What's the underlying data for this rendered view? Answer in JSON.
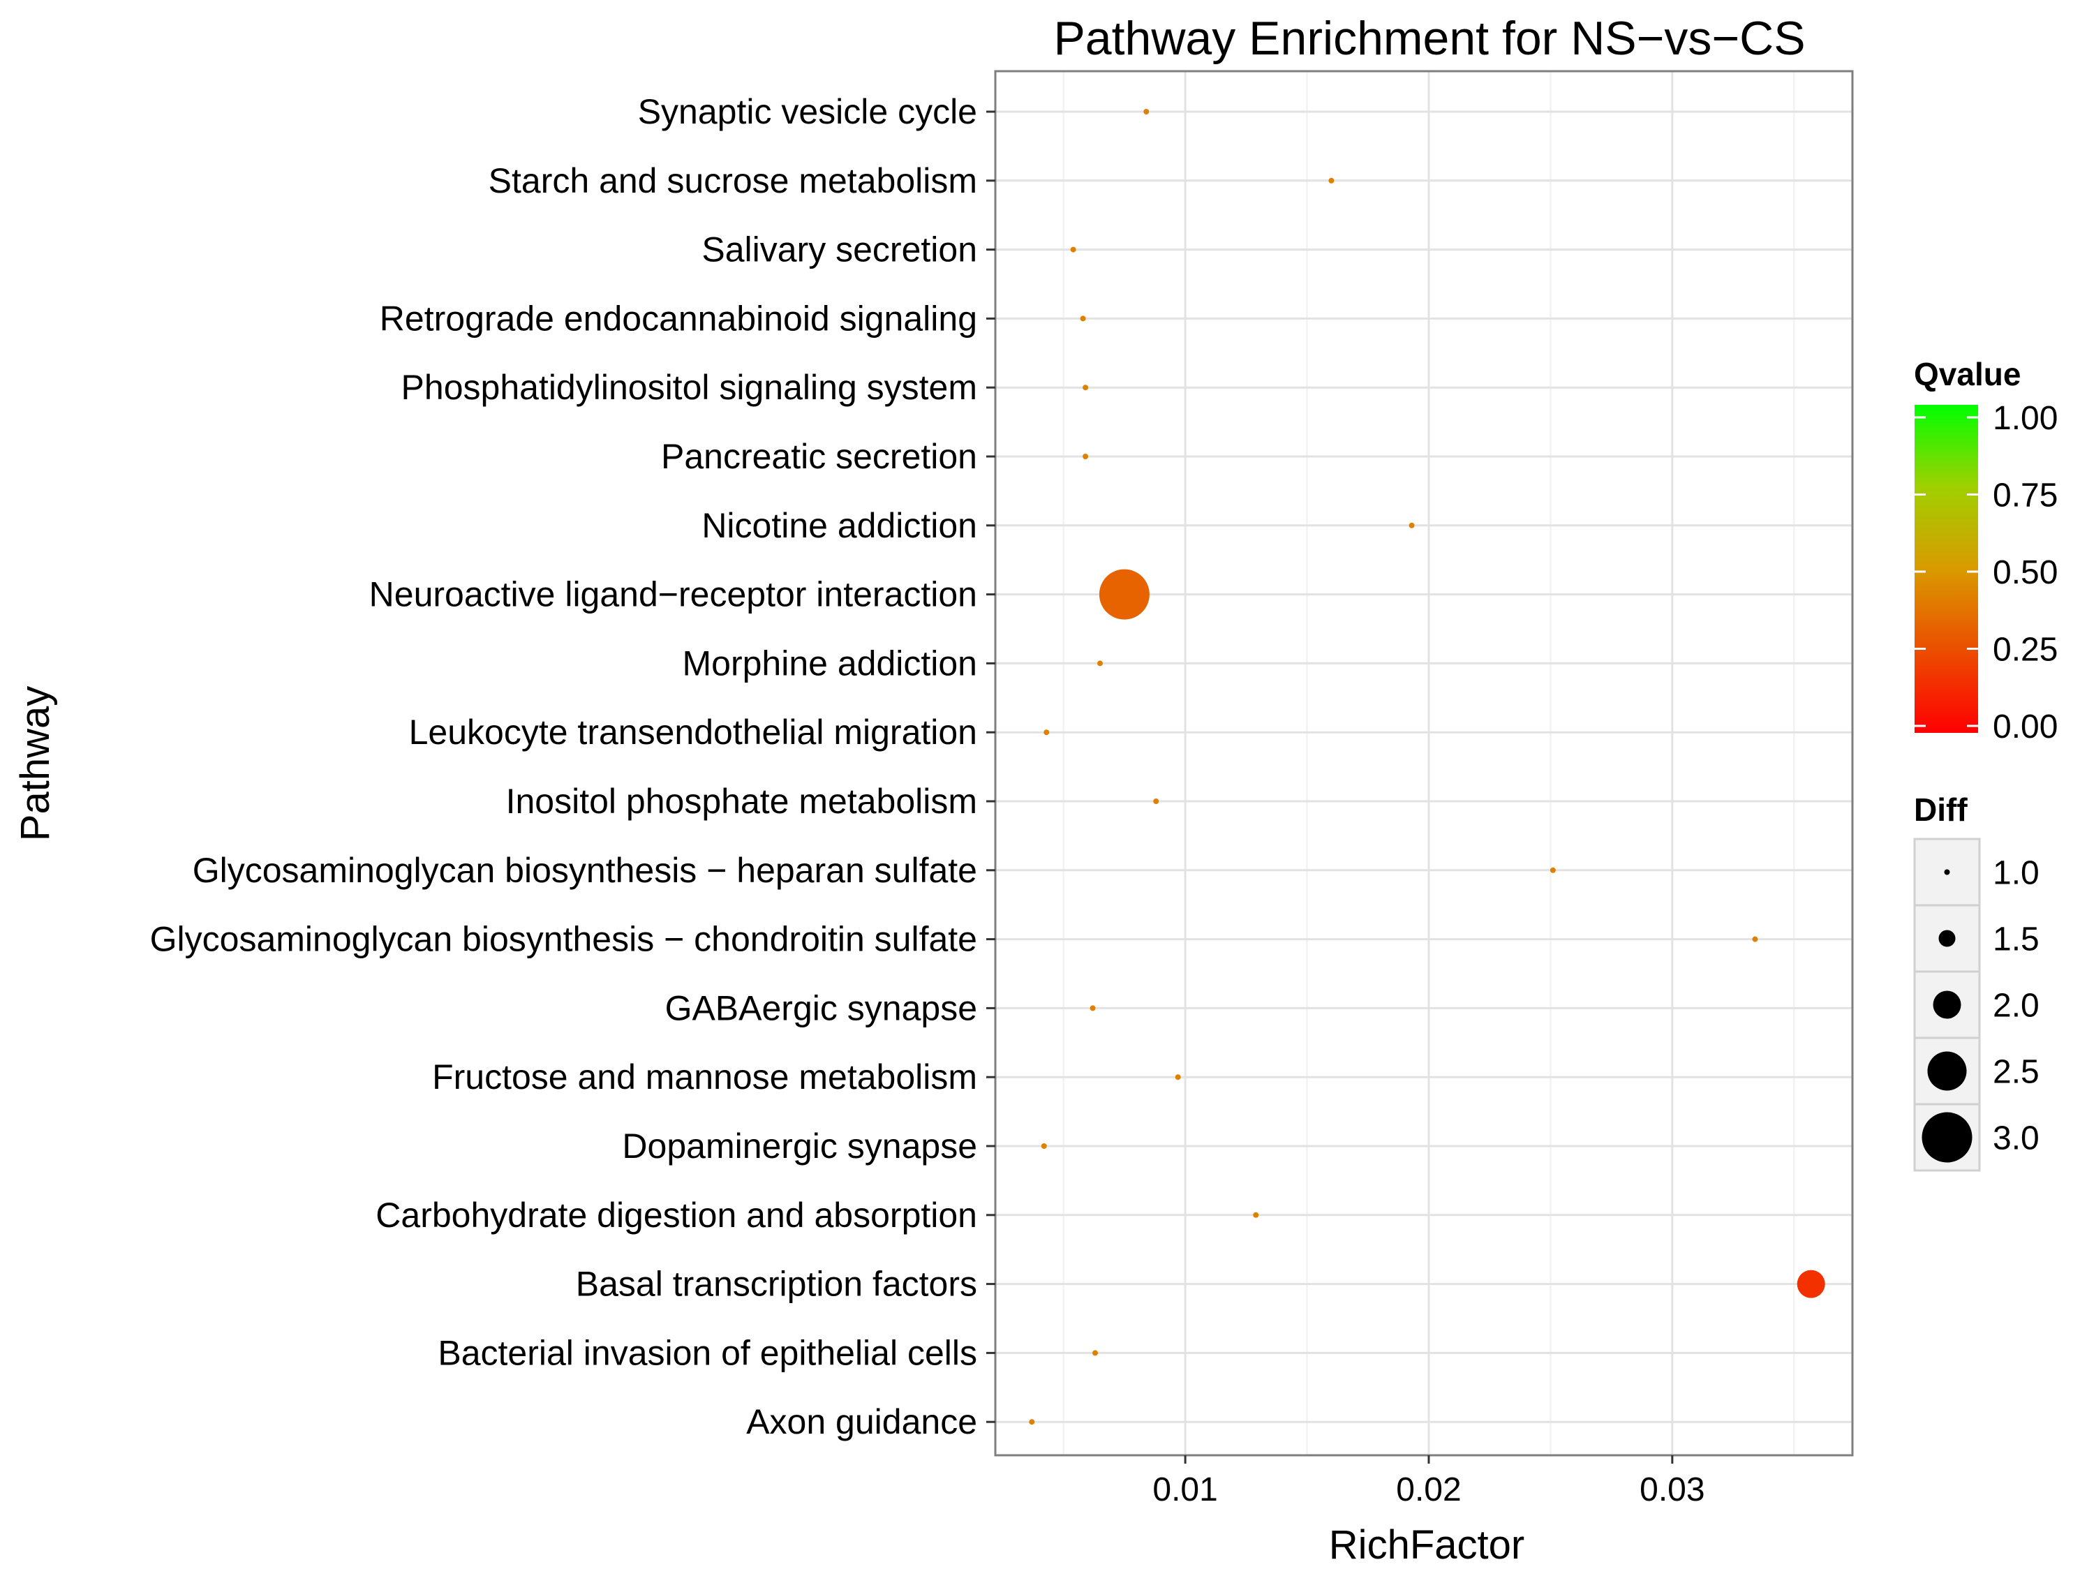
{
  "chart_data": {
    "type": "scatter",
    "title": "Pathway Enrichment for NS−vs−CS",
    "xlabel": "RichFactor",
    "ylabel": "Pathway",
    "xlim": [
      0.0022,
      0.0374
    ],
    "x_ticks": [
      {
        "value": 0.01,
        "label": "0.01"
      },
      {
        "value": 0.02,
        "label": "0.02"
      },
      {
        "value": 0.03,
        "label": "0.03"
      }
    ],
    "grid": true,
    "categories": [
      "Synaptic vesicle cycle",
      "Starch and sucrose metabolism",
      "Salivary secretion",
      "Retrograde endocannabinoid signaling",
      "Phosphatidylinositol signaling system",
      "Pancreatic secretion",
      "Nicotine addiction",
      "Neuroactive ligand−receptor interaction",
      "Morphine addiction",
      "Leukocyte transendothelial migration",
      "Inositol phosphate metabolism",
      "Glycosaminoglycan biosynthesis − heparan sulfate",
      "Glycosaminoglycan biosynthesis − chondroitin sulfate",
      "GABAergic synapse",
      "Fructose and mannose metabolism",
      "Dopaminergic synapse",
      "Carbohydrate digestion and absorption",
      "Basal transcription factors",
      "Bacterial invasion of epithelial cells",
      "Axon guidance"
    ],
    "points": [
      {
        "pathway": "Synaptic vesicle cycle",
        "richFactor": 0.0084,
        "qvalue": 0.42,
        "diff": 1
      },
      {
        "pathway": "Starch and sucrose metabolism",
        "richFactor": 0.016,
        "qvalue": 0.42,
        "diff": 1
      },
      {
        "pathway": "Salivary secretion",
        "richFactor": 0.0054,
        "qvalue": 0.42,
        "diff": 1
      },
      {
        "pathway": "Retrograde endocannabinoid signaling",
        "richFactor": 0.0058,
        "qvalue": 0.42,
        "diff": 1
      },
      {
        "pathway": "Phosphatidylinositol signaling system",
        "richFactor": 0.0059,
        "qvalue": 0.42,
        "diff": 1
      },
      {
        "pathway": "Pancreatic secretion",
        "richFactor": 0.0059,
        "qvalue": 0.42,
        "diff": 1
      },
      {
        "pathway": "Nicotine addiction",
        "richFactor": 0.0193,
        "qvalue": 0.42,
        "diff": 1
      },
      {
        "pathway": "Neuroactive ligand−receptor interaction",
        "richFactor": 0.0075,
        "qvalue": 0.32,
        "diff": 3
      },
      {
        "pathway": "Morphine addiction",
        "richFactor": 0.0065,
        "qvalue": 0.42,
        "diff": 1
      },
      {
        "pathway": "Leukocyte transendothelial migration",
        "richFactor": 0.0043,
        "qvalue": 0.42,
        "diff": 1
      },
      {
        "pathway": "Inositol phosphate metabolism",
        "richFactor": 0.0088,
        "qvalue": 0.42,
        "diff": 1
      },
      {
        "pathway": "Glycosaminoglycan biosynthesis − heparan sulfate",
        "richFactor": 0.0251,
        "qvalue": 0.42,
        "diff": 1
      },
      {
        "pathway": "Glycosaminoglycan biosynthesis − chondroitin sulfate",
        "richFactor": 0.0334,
        "qvalue": 0.42,
        "diff": 1
      },
      {
        "pathway": "GABAergic synapse",
        "richFactor": 0.0062,
        "qvalue": 0.42,
        "diff": 1
      },
      {
        "pathway": "Fructose and mannose metabolism",
        "richFactor": 0.0097,
        "qvalue": 0.42,
        "diff": 1
      },
      {
        "pathway": "Dopaminergic synapse",
        "richFactor": 0.0042,
        "qvalue": 0.42,
        "diff": 1
      },
      {
        "pathway": "Carbohydrate digestion and absorption",
        "richFactor": 0.0129,
        "qvalue": 0.42,
        "diff": 1
      },
      {
        "pathway": "Basal transcription factors",
        "richFactor": 0.0357,
        "qvalue": 0.16,
        "diff": 2
      },
      {
        "pathway": "Bacterial invasion of epithelial cells",
        "richFactor": 0.0063,
        "qvalue": 0.42,
        "diff": 1
      },
      {
        "pathway": "Axon guidance",
        "richFactor": 0.0037,
        "qvalue": 0.42,
        "diff": 1
      }
    ],
    "legend": {
      "placement": "right",
      "color_title": "Qvalue",
      "color_ticks": [
        "1.00",
        "0.75",
        "0.50",
        "0.25",
        "0.00"
      ],
      "color_tick_values": [
        1.0,
        0.75,
        0.5,
        0.25,
        0.0
      ],
      "color_scale": {
        "low": "#ff0000",
        "high": "#00ff00"
      },
      "size_title": "Diff",
      "size_labels": [
        "1.0",
        "1.5",
        "2.0",
        "2.5",
        "3.0"
      ],
      "size_values": [
        1.0,
        1.5,
        2.0,
        2.5,
        3.0
      ]
    }
  }
}
